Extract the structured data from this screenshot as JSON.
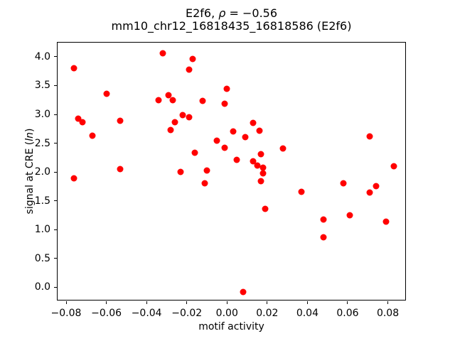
{
  "figure": {
    "background": "#ffffff"
  },
  "title": {
    "line1_prefix": "E2f6, ",
    "line1_rho": "ρ",
    "line1_suffix": " = −0.56",
    "line2": "mm10_chr12_16818435_16818586 (E2f6)"
  },
  "axes": {
    "x_label": "motif activity",
    "y_label_prefix": "signal at CRE (",
    "y_label_italic": "ln",
    "y_label_suffix": ")"
  },
  "chart_data": {
    "type": "scatter",
    "title": "E2f6, ρ = −0.56",
    "subtitle": "mm10_chr12_16818435_16818586 (E2f6)",
    "xlabel": "motif activity",
    "ylabel": "signal at CRE (ln)",
    "xlim": [
      -0.0846,
      0.089
    ],
    "ylim": [
      -0.231,
      4.258
    ],
    "xticks": [
      -0.08,
      -0.06,
      -0.04,
      -0.02,
      0.0,
      0.02,
      0.04,
      0.06,
      0.08
    ],
    "xtick_labels": [
      "−0.08",
      "−0.06",
      "−0.04",
      "−0.02",
      "0.00",
      "0.02",
      "0.04",
      "0.06",
      "0.08"
    ],
    "yticks": [
      0.0,
      0.5,
      1.0,
      1.5,
      2.0,
      2.5,
      3.0,
      3.5,
      4.0
    ],
    "ytick_labels": [
      "0.0",
      "0.5",
      "1.0",
      "1.5",
      "2.0",
      "2.5",
      "3.0",
      "3.5",
      "4.0"
    ],
    "grid": false,
    "legend": null,
    "marker_color": "#ff0000",
    "marker_diameter_px": 9,
    "points": [
      [
        -0.032,
        4.06
      ],
      [
        -0.017,
        3.96
      ],
      [
        -0.019,
        3.78
      ],
      [
        -0.076,
        3.8
      ],
      [
        -0.06,
        3.36
      ],
      [
        0.0,
        3.44
      ],
      [
        -0.034,
        3.25
      ],
      [
        -0.029,
        3.33
      ],
      [
        -0.027,
        3.25
      ],
      [
        -0.012,
        3.23
      ],
      [
        -0.001,
        3.19
      ],
      [
        -0.074,
        2.92
      ],
      [
        -0.072,
        2.86
      ],
      [
        -0.053,
        2.89
      ],
      [
        -0.022,
        2.99
      ],
      [
        -0.019,
        2.95
      ],
      [
        -0.026,
        2.87
      ],
      [
        -0.028,
        2.73
      ],
      [
        -0.067,
        2.63
      ],
      [
        0.013,
        2.85
      ],
      [
        0.016,
        2.72
      ],
      [
        0.003,
        2.7
      ],
      [
        0.009,
        2.61
      ],
      [
        0.071,
        2.62
      ],
      [
        0.028,
        2.41
      ],
      [
        -0.005,
        2.54
      ],
      [
        -0.001,
        2.42
      ],
      [
        -0.016,
        2.34
      ],
      [
        0.017,
        2.31
      ],
      [
        0.005,
        2.21
      ],
      [
        0.013,
        2.18
      ],
      [
        0.015,
        2.11
      ],
      [
        0.018,
        2.08
      ],
      [
        0.018,
        1.98
      ],
      [
        0.017,
        1.84
      ],
      [
        -0.023,
        2.0
      ],
      [
        -0.01,
        2.03
      ],
      [
        -0.011,
        1.8
      ],
      [
        -0.053,
        2.05
      ],
      [
        0.083,
        2.1
      ],
      [
        -0.076,
        1.89
      ],
      [
        0.019,
        1.36
      ],
      [
        0.037,
        1.65
      ],
      [
        0.058,
        1.8
      ],
      [
        0.071,
        1.64
      ],
      [
        0.074,
        1.76
      ],
      [
        0.061,
        1.25
      ],
      [
        0.048,
        1.17
      ],
      [
        0.079,
        1.14
      ],
      [
        0.048,
        0.87
      ],
      [
        0.008,
        -0.08
      ]
    ]
  }
}
